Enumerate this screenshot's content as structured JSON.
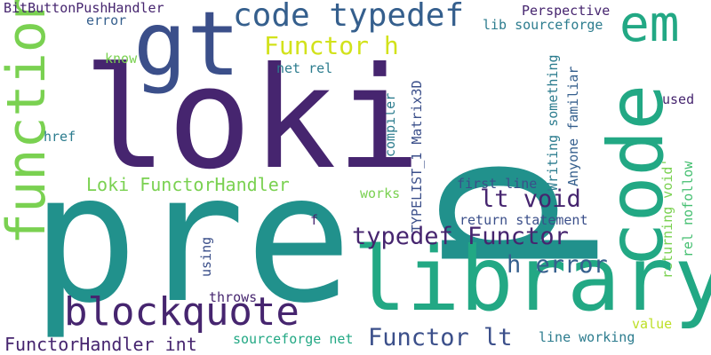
{
  "palette": {
    "dark_purple": "#46256f",
    "indigo": "#3b4f8a",
    "blue": "#355f8d",
    "teal_blue": "#2c7c8e",
    "teal": "#21918c",
    "green_teal": "#22a884",
    "green": "#44bf70",
    "lime": "#7ad151",
    "yellow_green": "#bddf26",
    "yellow": "#d2e21b"
  },
  "words": {
    "p": "p",
    "pre": "pre",
    "loki": "loki",
    "library": "library",
    "gt": "gt",
    "code_vertical": "code",
    "function": "function",
    "em": "em",
    "code_typedef": "code typedef",
    "blockquote": "blockquote",
    "typedef_functor": "typedef Functor",
    "functor_h": "Functor h",
    "lt_void": "lt void",
    "h_error": "h error",
    "functor_lt": "Functor lt",
    "loki_functorhandler": "Loki FunctorHandler",
    "functorhandler_int": "FunctorHandler int",
    "bitbuttonpushhandler": "BitButtonPushHandler",
    "error": "error",
    "perspective": "Perspective",
    "lib_sourceforge": "lib sourceforge",
    "know": "know",
    "net_rel": "net rel",
    "typelist_matrix3d": "TYPELIST_1 Matrix3D",
    "writing_something": "Writing something",
    "anyone_familiar": "Anyone familiar",
    "used": "used",
    "compiler": "compiler",
    "href": "href",
    "first_line": "first line",
    "works": "works",
    "returning_void": "returning void'",
    "rel_nofollow": "rel nofollow",
    "return_statement": "return statement",
    "f": "f",
    "using": "using",
    "throws": "throws",
    "value": "value",
    "sourceforge_net": "sourceforge net",
    "line_working": "line working"
  }
}
